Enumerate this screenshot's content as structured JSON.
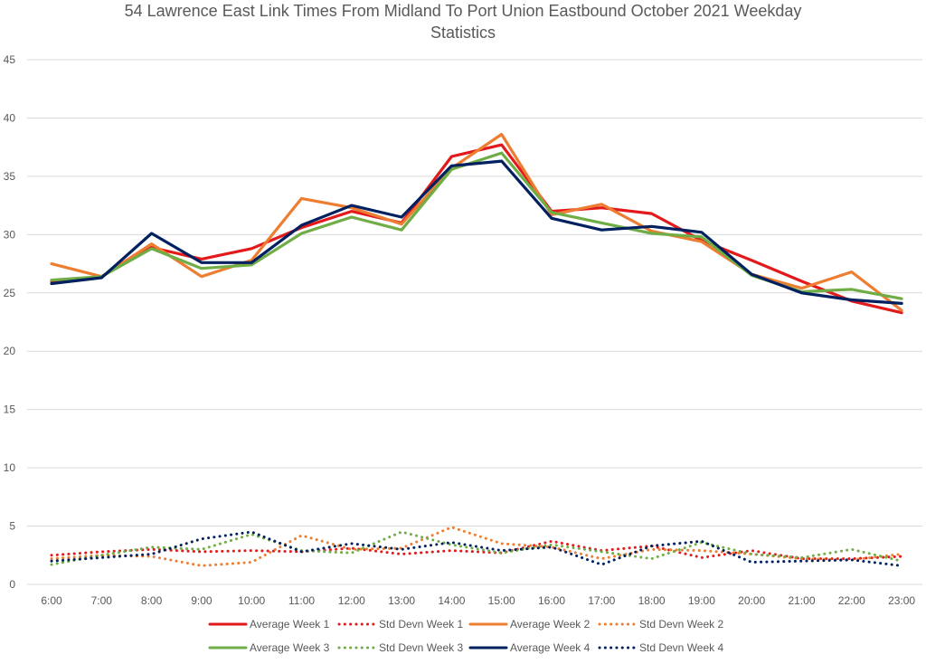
{
  "chart_data": {
    "type": "line",
    "title": "54 Lawrence East Link Times From Midland To Port Union Eastbound October 2021 Weekday Statistics",
    "title_lines": [
      "54 Lawrence East Link Times From Midland To Port Union Eastbound October 2021 Weekday",
      "Statistics"
    ],
    "xlabel": "",
    "ylabel": "",
    "ylim": [
      0,
      45
    ],
    "yticks": [
      0,
      5,
      10,
      15,
      20,
      25,
      30,
      35,
      40,
      45
    ],
    "grid": true,
    "legend_position": "bottom",
    "categories": [
      "6:00",
      "7:00",
      "8:00",
      "9:00",
      "10:00",
      "11:00",
      "12:00",
      "13:00",
      "14:00",
      "15:00",
      "16:00",
      "17:00",
      "18:00",
      "19:00",
      "20:00",
      "21:00",
      "22:00",
      "23:00"
    ],
    "series": [
      {
        "name": "Average Week 1",
        "color": "#e31a1c",
        "style": "solid",
        "values": [
          26.0,
          26.4,
          28.9,
          27.9,
          28.8,
          30.6,
          32.0,
          31.0,
          36.7,
          37.7,
          32.0,
          32.3,
          31.8,
          29.5,
          27.8,
          26.0,
          24.3,
          23.3
        ]
      },
      {
        "name": "Std Devn Week 1",
        "color": "#e31a1c",
        "style": "dotted",
        "values": [
          2.5,
          2.8,
          3.0,
          2.8,
          2.9,
          2.8,
          3.1,
          2.6,
          2.9,
          2.7,
          3.7,
          2.9,
          3.3,
          2.3,
          2.9,
          2.2,
          2.2,
          2.4
        ]
      },
      {
        "name": "Average Week 2",
        "color": "#ed7d31",
        "style": "solid",
        "values": [
          27.5,
          26.4,
          29.2,
          26.4,
          27.8,
          33.1,
          32.3,
          30.9,
          35.7,
          38.6,
          31.7,
          32.6,
          30.3,
          29.4,
          26.6,
          25.4,
          26.8,
          23.5
        ]
      },
      {
        "name": "Std Devn Week 2",
        "color": "#ed7d31",
        "style": "dotted",
        "values": [
          2.2,
          2.5,
          2.4,
          1.6,
          1.9,
          4.2,
          3.0,
          3.1,
          4.9,
          3.5,
          3.2,
          2.2,
          3.0,
          2.9,
          2.6,
          2.2,
          2.1,
          2.6
        ]
      },
      {
        "name": "Average Week 3",
        "color": "#70ad47",
        "style": "solid",
        "values": [
          26.1,
          26.4,
          28.8,
          27.1,
          27.4,
          30.1,
          31.5,
          30.4,
          35.6,
          37.0,
          31.9,
          31.0,
          30.1,
          29.8,
          26.5,
          25.1,
          25.3,
          24.5
        ]
      },
      {
        "name": "Std Devn Week 3",
        "color": "#70ad47",
        "style": "dotted",
        "values": [
          1.7,
          2.5,
          3.2,
          3.0,
          4.3,
          2.9,
          2.7,
          4.5,
          3.4,
          2.7,
          3.4,
          2.8,
          2.2,
          3.6,
          2.6,
          2.3,
          3.0,
          2.0
        ]
      },
      {
        "name": "Average Week 4",
        "color": "#002060",
        "style": "solid",
        "values": [
          25.8,
          26.3,
          30.1,
          27.6,
          27.6,
          30.8,
          32.5,
          31.5,
          35.9,
          36.3,
          31.4,
          30.4,
          30.7,
          30.2,
          26.6,
          25.0,
          24.4,
          24.1
        ]
      },
      {
        "name": "Std Devn Week 4",
        "color": "#002060",
        "style": "dotted",
        "values": [
          2.0,
          2.3,
          2.6,
          3.9,
          4.5,
          2.8,
          3.5,
          3.0,
          3.6,
          2.9,
          3.2,
          1.7,
          3.3,
          3.7,
          1.9,
          2.0,
          2.1,
          1.6
        ]
      }
    ]
  }
}
